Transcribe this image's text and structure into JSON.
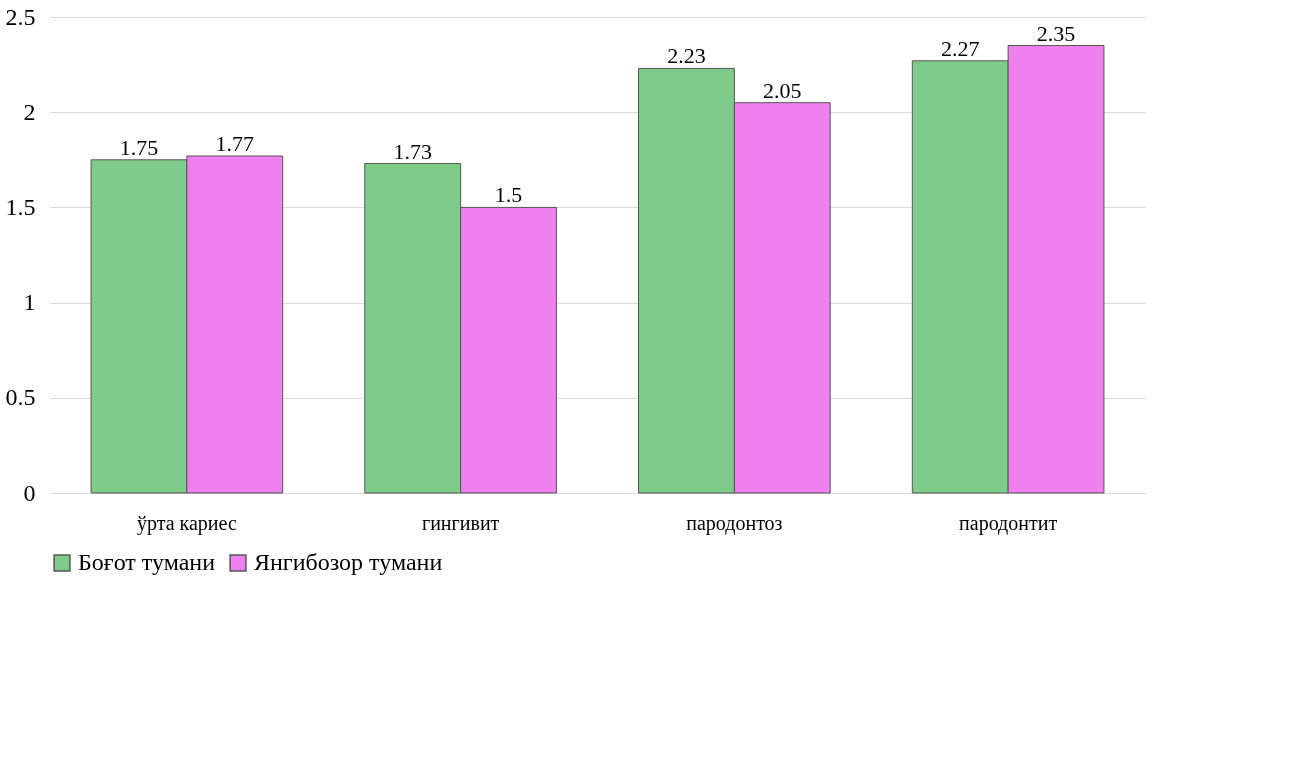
{
  "chart_data": {
    "type": "bar",
    "categories": [
      "ўрта кариес",
      "гингивит",
      "пародонтоз",
      "пародонтит"
    ],
    "series": [
      {
        "name": "Боғот тумани",
        "color": "#7fcc8a",
        "values": [
          1.75,
          1.73,
          2.23,
          2.27
        ]
      },
      {
        "name": "Янгибозор тумани",
        "color": "#f080f0",
        "values": [
          1.77,
          1.5,
          2.05,
          2.35
        ]
      }
    ],
    "ylim": [
      0,
      2.5
    ],
    "yticks": [
      0,
      0.5,
      1,
      1.5,
      2,
      2.5
    ],
    "grid": "y",
    "legend": "bottom",
    "data_labels": true
  }
}
